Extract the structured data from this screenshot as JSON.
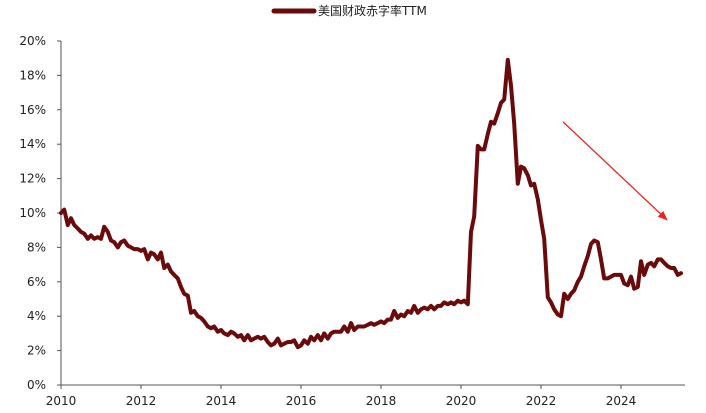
{
  "chart_data": {
    "type": "line",
    "legend": {
      "placement": "top-center",
      "label": "美国财政赤字率TTM"
    },
    "xlim": [
      2010.0,
      2025.6
    ],
    "ylim": [
      0,
      20
    ],
    "grid": false,
    "x_ticks": [
      "2010",
      "2012",
      "2014",
      "2016",
      "2018",
      "2020",
      "2022",
      "2024"
    ],
    "y_ticks": [
      "0%",
      "2%",
      "4%",
      "6%",
      "8%",
      "10%",
      "12%",
      "14%",
      "16%",
      "18%",
      "20%"
    ],
    "series": [
      {
        "name": "美国财政赤字率TTM",
        "color": "#6b0a0a",
        "points": [
          [
            2010.0,
            10.0
          ],
          [
            2010.08,
            10.2
          ],
          [
            2010.17,
            9.3
          ],
          [
            2010.25,
            9.7
          ],
          [
            2010.33,
            9.3
          ],
          [
            2010.42,
            9.1
          ],
          [
            2010.5,
            8.9
          ],
          [
            2010.58,
            8.8
          ],
          [
            2010.67,
            8.5
          ],
          [
            2010.75,
            8.7
          ],
          [
            2010.83,
            8.5
          ],
          [
            2010.92,
            8.6
          ],
          [
            2011.0,
            8.5
          ],
          [
            2011.08,
            9.2
          ],
          [
            2011.17,
            8.9
          ],
          [
            2011.25,
            8.4
          ],
          [
            2011.33,
            8.3
          ],
          [
            2011.42,
            8.0
          ],
          [
            2011.5,
            8.3
          ],
          [
            2011.58,
            8.4
          ],
          [
            2011.67,
            8.1
          ],
          [
            2011.75,
            8.0
          ],
          [
            2011.83,
            7.9
          ],
          [
            2011.92,
            7.9
          ],
          [
            2012.0,
            7.8
          ],
          [
            2012.08,
            7.9
          ],
          [
            2012.17,
            7.3
          ],
          [
            2012.25,
            7.7
          ],
          [
            2012.33,
            7.6
          ],
          [
            2012.42,
            7.3
          ],
          [
            2012.5,
            7.7
          ],
          [
            2012.58,
            6.8
          ],
          [
            2012.67,
            7.0
          ],
          [
            2012.75,
            6.6
          ],
          [
            2012.83,
            6.4
          ],
          [
            2012.92,
            6.2
          ],
          [
            2013.0,
            5.7
          ],
          [
            2013.08,
            5.3
          ],
          [
            2013.17,
            5.2
          ],
          [
            2013.25,
            4.2
          ],
          [
            2013.33,
            4.3
          ],
          [
            2013.42,
            4.0
          ],
          [
            2013.5,
            3.9
          ],
          [
            2013.58,
            3.7
          ],
          [
            2013.67,
            3.4
          ],
          [
            2013.75,
            3.3
          ],
          [
            2013.83,
            3.4
          ],
          [
            2013.92,
            3.1
          ],
          [
            2014.0,
            3.2
          ],
          [
            2014.08,
            3.0
          ],
          [
            2014.17,
            2.9
          ],
          [
            2014.25,
            3.1
          ],
          [
            2014.33,
            3.0
          ],
          [
            2014.42,
            2.8
          ],
          [
            2014.5,
            2.9
          ],
          [
            2014.58,
            2.6
          ],
          [
            2014.67,
            2.9
          ],
          [
            2014.75,
            2.6
          ],
          [
            2014.83,
            2.7
          ],
          [
            2014.92,
            2.8
          ],
          [
            2015.0,
            2.7
          ],
          [
            2015.08,
            2.8
          ],
          [
            2015.17,
            2.5
          ],
          [
            2015.25,
            2.3
          ],
          [
            2015.33,
            2.4
          ],
          [
            2015.42,
            2.7
          ],
          [
            2015.5,
            2.3
          ],
          [
            2015.58,
            2.4
          ],
          [
            2015.67,
            2.5
          ],
          [
            2015.75,
            2.5
          ],
          [
            2015.83,
            2.6
          ],
          [
            2015.92,
            2.2
          ],
          [
            2016.0,
            2.3
          ],
          [
            2016.08,
            2.6
          ],
          [
            2016.17,
            2.4
          ],
          [
            2016.25,
            2.8
          ],
          [
            2016.33,
            2.6
          ],
          [
            2016.42,
            2.9
          ],
          [
            2016.5,
            2.6
          ],
          [
            2016.58,
            3.0
          ],
          [
            2016.67,
            2.7
          ],
          [
            2016.75,
            3.0
          ],
          [
            2016.83,
            3.1
          ],
          [
            2016.92,
            3.1
          ],
          [
            2017.0,
            3.1
          ],
          [
            2017.08,
            3.4
          ],
          [
            2017.17,
            3.1
          ],
          [
            2017.25,
            3.6
          ],
          [
            2017.33,
            3.2
          ],
          [
            2017.42,
            3.4
          ],
          [
            2017.5,
            3.4
          ],
          [
            2017.58,
            3.4
          ],
          [
            2017.67,
            3.5
          ],
          [
            2017.75,
            3.6
          ],
          [
            2017.83,
            3.5
          ],
          [
            2017.92,
            3.6
          ],
          [
            2018.0,
            3.7
          ],
          [
            2018.08,
            3.6
          ],
          [
            2018.17,
            3.8
          ],
          [
            2018.25,
            3.8
          ],
          [
            2018.33,
            4.3
          ],
          [
            2018.42,
            3.9
          ],
          [
            2018.5,
            4.1
          ],
          [
            2018.58,
            4.0
          ],
          [
            2018.67,
            4.3
          ],
          [
            2018.75,
            4.2
          ],
          [
            2018.83,
            4.6
          ],
          [
            2018.92,
            4.2
          ],
          [
            2019.0,
            4.4
          ],
          [
            2019.08,
            4.5
          ],
          [
            2019.17,
            4.4
          ],
          [
            2019.25,
            4.6
          ],
          [
            2019.33,
            4.4
          ],
          [
            2019.42,
            4.6
          ],
          [
            2019.5,
            4.6
          ],
          [
            2019.58,
            4.8
          ],
          [
            2019.67,
            4.7
          ],
          [
            2019.75,
            4.8
          ],
          [
            2019.83,
            4.7
          ],
          [
            2019.92,
            4.9
          ],
          [
            2020.0,
            4.8
          ],
          [
            2020.08,
            4.9
          ],
          [
            2020.17,
            4.7
          ],
          [
            2020.25,
            8.9
          ],
          [
            2020.33,
            9.8
          ],
          [
            2020.42,
            13.9
          ],
          [
            2020.5,
            13.7
          ],
          [
            2020.58,
            13.7
          ],
          [
            2020.67,
            14.6
          ],
          [
            2020.75,
            15.3
          ],
          [
            2020.83,
            15.2
          ],
          [
            2020.92,
            15.8
          ],
          [
            2021.0,
            16.4
          ],
          [
            2021.08,
            16.6
          ],
          [
            2021.17,
            18.9
          ],
          [
            2021.25,
            17.4
          ],
          [
            2021.33,
            15.2
          ],
          [
            2021.42,
            11.7
          ],
          [
            2021.5,
            12.7
          ],
          [
            2021.58,
            12.6
          ],
          [
            2021.67,
            12.2
          ],
          [
            2021.75,
            11.6
          ],
          [
            2021.83,
            11.7
          ],
          [
            2021.92,
            10.8
          ],
          [
            2022.0,
            9.6
          ],
          [
            2022.08,
            8.5
          ],
          [
            2022.17,
            5.1
          ],
          [
            2022.25,
            4.8
          ],
          [
            2022.33,
            4.4
          ],
          [
            2022.42,
            4.1
          ],
          [
            2022.5,
            4.0
          ],
          [
            2022.58,
            5.3
          ],
          [
            2022.67,
            5.0
          ],
          [
            2022.75,
            5.3
          ],
          [
            2022.83,
            5.5
          ],
          [
            2022.92,
            6.0
          ],
          [
            2023.0,
            6.3
          ],
          [
            2023.08,
            6.9
          ],
          [
            2023.17,
            7.5
          ],
          [
            2023.25,
            8.2
          ],
          [
            2023.33,
            8.4
          ],
          [
            2023.42,
            8.3
          ],
          [
            2023.5,
            7.3
          ],
          [
            2023.58,
            6.2
          ],
          [
            2023.67,
            6.2
          ],
          [
            2023.75,
            6.3
          ],
          [
            2023.83,
            6.4
          ],
          [
            2023.92,
            6.4
          ],
          [
            2024.0,
            6.4
          ],
          [
            2024.08,
            5.9
          ],
          [
            2024.17,
            5.8
          ],
          [
            2024.25,
            6.3
          ],
          [
            2024.33,
            5.6
          ],
          [
            2024.42,
            5.7
          ],
          [
            2024.5,
            7.2
          ],
          [
            2024.58,
            6.4
          ],
          [
            2024.67,
            7.0
          ],
          [
            2024.75,
            7.1
          ],
          [
            2024.83,
            6.9
          ],
          [
            2024.92,
            7.3
          ],
          [
            2025.0,
            7.3
          ],
          [
            2025.08,
            7.1
          ],
          [
            2025.17,
            6.9
          ],
          [
            2025.25,
            6.8
          ],
          [
            2025.33,
            6.8
          ],
          [
            2025.42,
            6.4
          ],
          [
            2025.5,
            6.5
          ]
        ]
      }
    ],
    "annotations": [
      {
        "type": "arrow",
        "color": "#e8251f",
        "from": [
          2022.55,
          15.3
        ],
        "to": [
          2025.15,
          9.6
        ]
      }
    ]
  }
}
